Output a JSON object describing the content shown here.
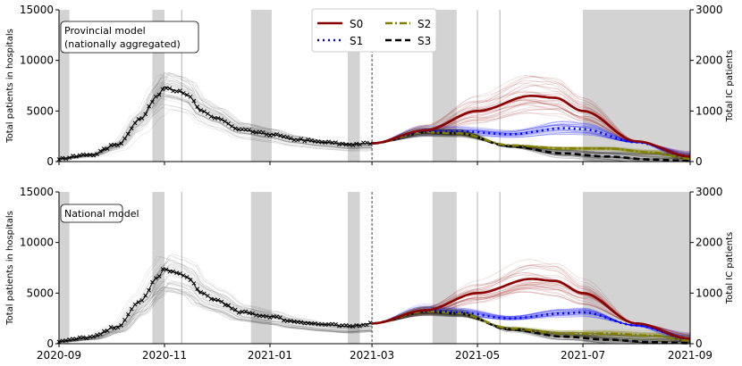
{
  "chart_data": {
    "type": "line",
    "x_ticks": [
      "2020-09",
      "2020-11",
      "2021-01",
      "2021-03",
      "2021-05",
      "2021-07",
      "2021-09"
    ],
    "xlim": [
      "2020-09-01",
      "2021-09-01"
    ],
    "ylabel_left": "Total patients in hospitals",
    "ylabel_right": "Total IC patients",
    "ylim_left": [
      0,
      15000
    ],
    "ylim_right": [
      0,
      3000
    ],
    "yticks_left": [
      "0",
      "5000",
      "10000",
      "15000"
    ],
    "yticks_right": [
      "0",
      "1000",
      "2000",
      "3000"
    ],
    "legend": {
      "placement": "top-center",
      "entries": [
        {
          "name": "S0",
          "color": "#8b0000",
          "style": "solid"
        },
        {
          "name": "S1",
          "color": "#0000ff",
          "style": "dotted"
        },
        {
          "name": "S2",
          "color": "#808000",
          "style": "dashdot"
        },
        {
          "name": "S3",
          "color": "#000000",
          "style": "dashed"
        }
      ]
    },
    "shaded_periods": [
      [
        "2020-09-01",
        "2020-09-07"
      ],
      [
        "2020-10-25",
        "2020-11-01"
      ],
      [
        "2020-12-21",
        "2021-01-02"
      ],
      [
        "2021-02-15",
        "2021-02-22"
      ],
      [
        "2021-04-05",
        "2021-04-19"
      ],
      [
        "2021-07-01",
        "2021-09-01"
      ]
    ],
    "vertical_lines": [
      "2020-11-11",
      "2021-05-01",
      "2021-05-14"
    ],
    "forecast_start": "2021-03-01",
    "panels": [
      {
        "annotation": [
          "Provincial model",
          "(nationally aggregated)"
        ],
        "observed": [
          [
            "2020-09-01",
            300
          ],
          [
            "2020-09-20",
            700
          ],
          [
            "2020-10-05",
            1700
          ],
          [
            "2020-10-18",
            4200
          ],
          [
            "2020-10-28",
            6500
          ],
          [
            "2020-11-01",
            7400
          ],
          [
            "2020-11-08",
            7000
          ],
          [
            "2020-11-15",
            6500
          ],
          [
            "2020-11-22",
            5000
          ],
          [
            "2020-12-01",
            4300
          ],
          [
            "2020-12-15",
            3100
          ],
          [
            "2021-01-01",
            2700
          ],
          [
            "2021-01-15",
            2200
          ],
          [
            "2021-02-01",
            1900
          ],
          [
            "2021-02-15",
            1700
          ],
          [
            "2021-03-01",
            1800
          ]
        ],
        "series": [
          {
            "name": "S0",
            "values": [
              [
                "2021-03-01",
                1800
              ],
              [
                "2021-04-01",
                3100
              ],
              [
                "2021-05-01",
                5000
              ],
              [
                "2021-06-01",
                6500
              ],
              [
                "2021-06-15",
                6300
              ],
              [
                "2021-07-01",
                5000
              ],
              [
                "2021-08-01",
                2000
              ],
              [
                "2021-09-01",
                500
              ]
            ]
          },
          {
            "name": "S1",
            "values": [
              [
                "2021-03-01",
                1800
              ],
              [
                "2021-04-01",
                3000
              ],
              [
                "2021-04-20",
                3000
              ],
              [
                "2021-05-20",
                2700
              ],
              [
                "2021-06-20",
                3300
              ],
              [
                "2021-07-01",
                3200
              ],
              [
                "2021-08-01",
                1900
              ],
              [
                "2021-09-01",
                500
              ]
            ]
          },
          {
            "name": "S2",
            "values": [
              [
                "2021-03-01",
                1800
              ],
              [
                "2021-04-01",
                2900
              ],
              [
                "2021-04-20",
                2800
              ],
              [
                "2021-05-20",
                1600
              ],
              [
                "2021-06-20",
                1300
              ],
              [
                "2021-07-15",
                1300
              ],
              [
                "2021-08-10",
                900
              ],
              [
                "2021-09-01",
                300
              ]
            ]
          },
          {
            "name": "S3",
            "values": [
              [
                "2021-03-01",
                1800
              ],
              [
                "2021-04-01",
                2900
              ],
              [
                "2021-04-20",
                2800
              ],
              [
                "2021-05-20",
                1500
              ],
              [
                "2021-06-20",
                800
              ],
              [
                "2021-07-15",
                500
              ],
              [
                "2021-08-10",
                200
              ],
              [
                "2021-09-01",
                60
              ]
            ]
          }
        ]
      },
      {
        "annotation": [
          "National model"
        ],
        "observed": [
          [
            "2020-09-01",
            250
          ],
          [
            "2020-09-20",
            650
          ],
          [
            "2020-10-05",
            1700
          ],
          [
            "2020-10-18",
            4200
          ],
          [
            "2020-10-28",
            6500
          ],
          [
            "2020-11-01",
            7400
          ],
          [
            "2020-11-08",
            7000
          ],
          [
            "2020-11-15",
            6500
          ],
          [
            "2020-11-22",
            5000
          ],
          [
            "2020-12-01",
            4300
          ],
          [
            "2020-12-15",
            3100
          ],
          [
            "2021-01-01",
            2700
          ],
          [
            "2021-01-15",
            2200
          ],
          [
            "2021-02-01",
            1900
          ],
          [
            "2021-02-15",
            1700
          ],
          [
            "2021-03-01",
            2000
          ]
        ],
        "series": [
          {
            "name": "S0",
            "values": [
              [
                "2021-03-01",
                2000
              ],
              [
                "2021-04-01",
                3300
              ],
              [
                "2021-05-01",
                5000
              ],
              [
                "2021-06-01",
                6400
              ],
              [
                "2021-06-15",
                6200
              ],
              [
                "2021-07-01",
                5000
              ],
              [
                "2021-08-01",
                2000
              ],
              [
                "2021-09-01",
                500
              ]
            ]
          },
          {
            "name": "S1",
            "values": [
              [
                "2021-03-01",
                2000
              ],
              [
                "2021-04-01",
                3300
              ],
              [
                "2021-04-20",
                3100
              ],
              [
                "2021-05-20",
                2500
              ],
              [
                "2021-06-20",
                3000
              ],
              [
                "2021-07-01",
                3100
              ],
              [
                "2021-08-01",
                1800
              ],
              [
                "2021-09-01",
                500
              ]
            ]
          },
          {
            "name": "S2",
            "values": [
              [
                "2021-03-01",
                2000
              ],
              [
                "2021-04-01",
                3200
              ],
              [
                "2021-04-20",
                3000
              ],
              [
                "2021-05-20",
                1500
              ],
              [
                "2021-06-20",
                1000
              ],
              [
                "2021-07-15",
                1000
              ],
              [
                "2021-08-10",
                800
              ],
              [
                "2021-09-01",
                300
              ]
            ]
          },
          {
            "name": "S3",
            "values": [
              [
                "2021-03-01",
                2000
              ],
              [
                "2021-04-01",
                3200
              ],
              [
                "2021-04-20",
                3000
              ],
              [
                "2021-05-20",
                1400
              ],
              [
                "2021-06-20",
                700
              ],
              [
                "2021-07-15",
                400
              ],
              [
                "2021-08-10",
                150
              ],
              [
                "2021-09-01",
                50
              ]
            ]
          }
        ]
      }
    ]
  }
}
